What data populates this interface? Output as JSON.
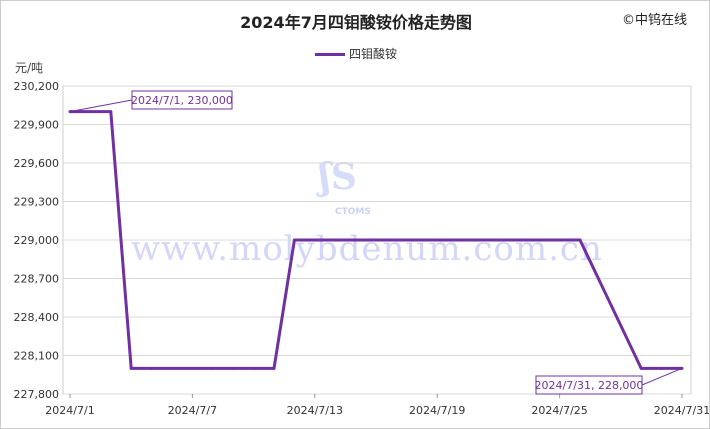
{
  "chart_data": {
    "type": "line",
    "title": "2024年7月四钼酸铵价格走势图",
    "copyright": "©中钨在线",
    "ylabel": "元/吨",
    "ylim": [
      227800,
      230200
    ],
    "yticks": [
      "230,200",
      "229,900",
      "229,600",
      "229,300",
      "229,000",
      "228,700",
      "228,400",
      "228,100",
      "227,800"
    ],
    "xlim": [
      "2024/7/1",
      "2024/7/31"
    ],
    "xticks": [
      "2024/7/1",
      "2024/7/7",
      "2024/7/13",
      "2024/7/19",
      "2024/7/25",
      "2024/7/31"
    ],
    "grid": true,
    "legend_position": "top",
    "color": "#7030a0",
    "series": [
      {
        "name": "四钼酸铵",
        "x": [
          1,
          2,
          3,
          4,
          5,
          8,
          9,
          10,
          11,
          12,
          15,
          16,
          17,
          18,
          19,
          22,
          23,
          24,
          25,
          26,
          29,
          30,
          31
        ],
        "values": [
          230000,
          230000,
          230000,
          228000,
          228000,
          228000,
          228000,
          228000,
          228000,
          229000,
          229000,
          229000,
          229000,
          229000,
          229000,
          229000,
          229000,
          229000,
          229000,
          229000,
          228000,
          228000,
          228000
        ]
      }
    ],
    "annotations": [
      "2024/7/1, 230,000",
      "2024/7/31, 228,000"
    ],
    "watermark": "www.molybdenum.com.cn",
    "watermark_logo": "CTOMS"
  }
}
